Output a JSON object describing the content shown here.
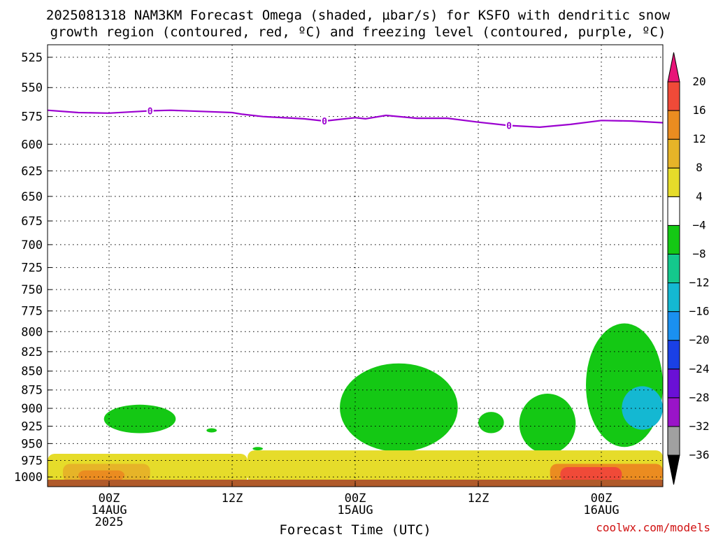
{
  "title": {
    "line1": "2025081318 NAM3KM Forecast Omega (shaded, µbar/s) for KSFO with dendritic snow",
    "line2": "growth region (contoured, red, ºC) and freezing level (contoured, purple, ºC)"
  },
  "xaxis_title": "Forecast Time (UTC)",
  "credit": "coolwx.com/models",
  "chart_data": {
    "type": "heatmap",
    "model": "NAM3KM",
    "init": "2025081318",
    "station": "KSFO",
    "shaded_field": "Omega (µbar/s)",
    "y_scale": "log-pressure (hPa), inverted",
    "ylim": [
      1015,
      515
    ],
    "xlim_hours_from_init": [
      0,
      60
    ],
    "grid": true,
    "yticks": [
      525,
      550,
      575,
      600,
      625,
      650,
      675,
      700,
      725,
      750,
      775,
      800,
      825,
      850,
      875,
      900,
      925,
      950,
      975,
      1000
    ],
    "xticks": [
      {
        "hour": 6,
        "lines": [
          "00Z",
          "14AUG",
          "2025"
        ]
      },
      {
        "hour": 18,
        "lines": [
          "12Z"
        ]
      },
      {
        "hour": 30,
        "lines": [
          "00Z",
          "15AUG"
        ]
      },
      {
        "hour": 42,
        "lines": [
          "12Z"
        ]
      },
      {
        "hour": 54,
        "lines": [
          "00Z",
          "16AUG"
        ]
      }
    ],
    "colorbar": {
      "levels": [
        -36,
        -32,
        -28,
        -24,
        -20,
        -16,
        -12,
        -8,
        -4,
        4,
        8,
        12,
        16,
        20
      ],
      "colors": [
        "#000000",
        "#a0a0a0",
        "#9a14c8",
        "#6a10d6",
        "#1a40e6",
        "#1a90f0",
        "#14b8d2",
        "#14c88c",
        "#14c814",
        "#ffffff",
        "#e6dc2a",
        "#e6b428",
        "#eb8c20",
        "#f04a38",
        "#e81478"
      ]
    },
    "freezing_level": {
      "color": "#9b00d0",
      "label": "0",
      "hours": [
        0,
        3,
        6,
        9,
        10,
        12,
        15,
        18,
        19,
        21,
        25,
        27,
        28,
        30,
        31,
        33,
        36,
        39,
        42,
        45,
        48,
        51,
        54,
        57,
        60
      ],
      "pressure_hPa": [
        569.5,
        571.5,
        572,
        570.5,
        570,
        569.5,
        570.5,
        571.5,
        573,
        575,
        577,
        579,
        578,
        576,
        577,
        574,
        576.5,
        576.5,
        580,
        583,
        584.5,
        582,
        578.5,
        579,
        580.5
      ],
      "label_positions_hours": [
        10,
        27,
        45
      ]
    },
    "omega_regions": [
      {
        "value_band": "-8 to -4",
        "hours": [
          5.5,
          12.5
        ],
        "pressure_hPa": [
          895,
          935
        ]
      },
      {
        "value_band": "-8 to -4",
        "hours": [
          15.5,
          16.5
        ],
        "pressure_hPa": [
          928,
          934
        ]
      },
      {
        "value_band": "-8 to -4",
        "hours": [
          20,
          21
        ],
        "pressure_hPa": [
          955,
          960
        ]
      },
      {
        "value_band": "-8 to -4",
        "hours": [
          28.5,
          40
        ],
        "pressure_hPa": [
          840,
          962
        ]
      },
      {
        "value_band": "-8 to -4",
        "hours": [
          42,
          44.5
        ],
        "pressure_hPa": [
          905,
          935
        ]
      },
      {
        "value_band": "-8 to -4",
        "hours": [
          46,
          51.5
        ],
        "pressure_hPa": [
          880,
          965
        ]
      },
      {
        "value_band": "-8 to -4",
        "hours": [
          52.5,
          60
        ],
        "pressure_hPa": [
          790,
          955
        ]
      },
      {
        "value_band": "-12 to -16",
        "hours": [
          56,
          60
        ],
        "pressure_hPa": [
          870,
          930
        ]
      },
      {
        "value_band": "4 to 8",
        "hours": [
          0,
          19.5
        ],
        "pressure_hPa": [
          965,
          1010
        ]
      },
      {
        "value_band": "4 to 8",
        "hours": [
          19.5,
          60
        ],
        "pressure_hPa": [
          960,
          1010
        ]
      },
      {
        "value_band": "8 to 12",
        "hours": [
          1.5,
          10
        ],
        "pressure_hPa": [
          980,
          1008
        ]
      },
      {
        "value_band": "12 to 16",
        "hours": [
          3,
          7.5
        ],
        "pressure_hPa": [
          990,
          1005
        ]
      },
      {
        "value_band": "12 to 16",
        "hours": [
          49,
          60
        ],
        "pressure_hPa": [
          980,
          1008
        ]
      },
      {
        "value_band": "16 to 20",
        "hours": [
          50,
          56
        ],
        "pressure_hPa": [
          985,
          1008
        ]
      }
    ]
  }
}
